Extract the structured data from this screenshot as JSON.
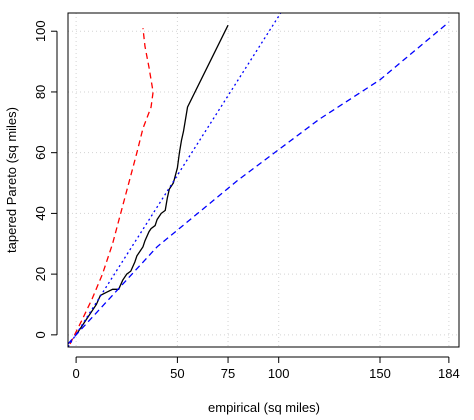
{
  "chart_data": {
    "type": "line",
    "title": "",
    "xlabel": "empirical (sq miles)",
    "ylabel": "tapered Pareto (sq miles)",
    "xlim": [
      -4,
      189
    ],
    "ylim": [
      -4,
      106
    ],
    "x_ticks": [
      0,
      50,
      75,
      100,
      150,
      184
    ],
    "y_ticks": [
      0,
      20,
      40,
      60,
      80,
      100
    ],
    "grid": true,
    "legend": "none",
    "series": [
      {
        "style": "solid",
        "color": "#000000",
        "points": [
          [
            0,
            0
          ],
          [
            2,
            2
          ],
          [
            5,
            5
          ],
          [
            8,
            8
          ],
          [
            10,
            10
          ],
          [
            12,
            13
          ],
          [
            15,
            14
          ],
          [
            18,
            15
          ],
          [
            21,
            15
          ],
          [
            23,
            18
          ],
          [
            25,
            20
          ],
          [
            27,
            21
          ],
          [
            29,
            24
          ],
          [
            30,
            26
          ],
          [
            32,
            28
          ],
          [
            33,
            29
          ],
          [
            34,
            31
          ],
          [
            36,
            34
          ],
          [
            37,
            35
          ],
          [
            39,
            36
          ],
          [
            40,
            38
          ],
          [
            42,
            40
          ],
          [
            44,
            41
          ],
          [
            45,
            45
          ],
          [
            46,
            48
          ],
          [
            48,
            50
          ],
          [
            50,
            55
          ],
          [
            51,
            60
          ],
          [
            52,
            64
          ],
          [
            53,
            67
          ],
          [
            55,
            75
          ],
          [
            75,
            102
          ]
        ]
      },
      {
        "style": "dashed",
        "color": "#ff0000",
        "points": [
          [
            -3,
            -3
          ],
          [
            3,
            5
          ],
          [
            8,
            12
          ],
          [
            13,
            20
          ],
          [
            18,
            30
          ],
          [
            22,
            40
          ],
          [
            26,
            50
          ],
          [
            30,
            60
          ],
          [
            33,
            68
          ],
          [
            37,
            75
          ],
          [
            38,
            80
          ],
          [
            36,
            88
          ],
          [
            34,
            95
          ],
          [
            33,
            101
          ]
        ]
      },
      {
        "style": "dotted",
        "color": "#0000ff",
        "points": [
          [
            -4,
            -4
          ],
          [
            101,
            106
          ]
        ]
      },
      {
        "style": "dashed",
        "color": "#0000ff",
        "points": [
          [
            -4,
            -3
          ],
          [
            0,
            0
          ],
          [
            40,
            29
          ],
          [
            80,
            51
          ],
          [
            100,
            61
          ],
          [
            120,
            71
          ],
          [
            150,
            84
          ],
          [
            184,
            103
          ]
        ]
      }
    ]
  }
}
